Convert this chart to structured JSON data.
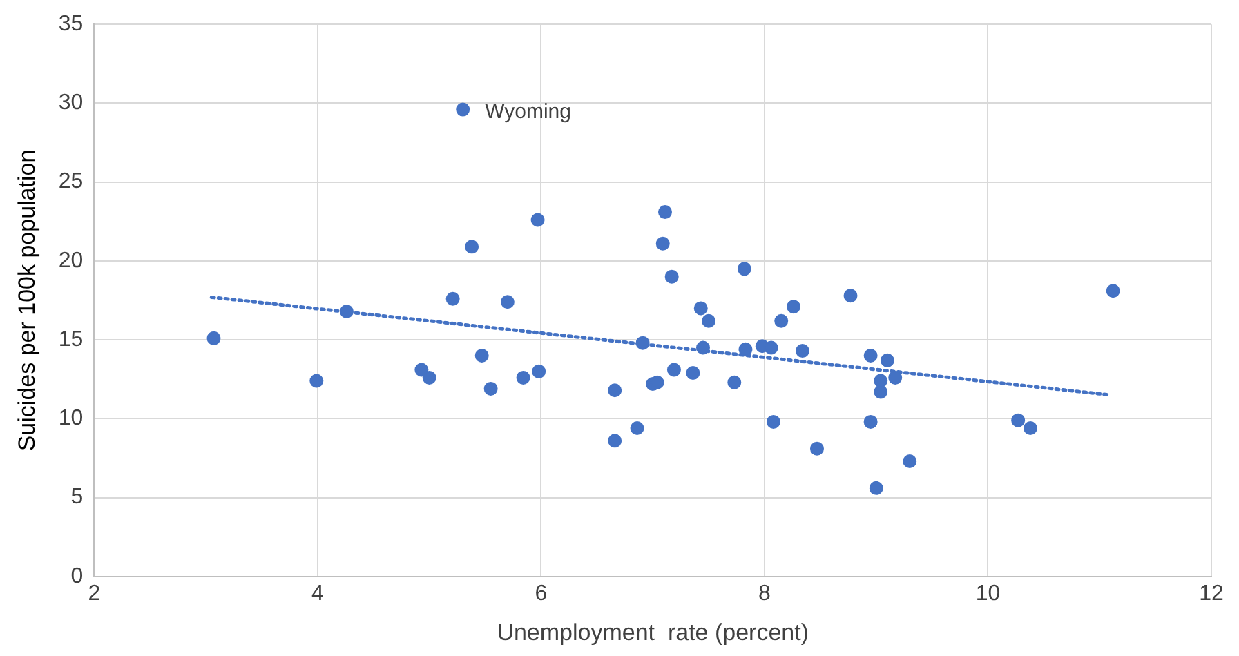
{
  "chart_data": {
    "type": "scatter",
    "xlabel": "Unemployment  rate (percent)",
    "ylabel": "Suicides per 100k population",
    "xlim": [
      2,
      12
    ],
    "xticks": [
      2,
      4,
      6,
      8,
      10,
      12
    ],
    "ylim": [
      0,
      35
    ],
    "yticks": [
      0,
      5,
      10,
      15,
      20,
      25,
      30,
      35
    ],
    "grid": true,
    "legend": false,
    "marker": "circle",
    "series": [
      {
        "color": "#4472c4",
        "x": [
          3.07,
          3.99,
          4.26,
          4.93,
          5.0,
          5.21,
          5.3,
          5.38,
          5.47,
          5.55,
          5.7,
          5.84,
          5.98,
          5.97,
          6.66,
          6.66,
          6.86,
          6.91,
          7.0,
          7.04,
          7.09,
          7.11,
          7.17,
          7.19,
          7.36,
          7.43,
          7.45,
          7.5,
          7.73,
          7.82,
          7.83,
          7.98,
          8.06,
          8.08,
          8.15,
          8.26,
          8.34,
          8.47,
          8.77,
          8.95,
          8.95,
          9.0,
          9.04,
          9.04,
          9.1,
          9.17,
          9.3,
          10.27,
          10.38,
          11.12
        ],
        "values": [
          15.1,
          12.4,
          16.8,
          13.1,
          12.6,
          17.6,
          29.6,
          20.9,
          14.0,
          11.9,
          17.4,
          12.6,
          13.0,
          22.6,
          11.8,
          8.6,
          9.4,
          14.8,
          12.2,
          12.3,
          21.1,
          23.1,
          19.0,
          13.1,
          12.9,
          17.0,
          14.5,
          16.2,
          12.3,
          19.5,
          14.4,
          14.6,
          14.5,
          9.8,
          16.2,
          17.1,
          14.3,
          8.1,
          17.8,
          14.0,
          9.8,
          5.6,
          12.4,
          11.7,
          13.7,
          12.6,
          7.3,
          9.9,
          9.4,
          18.1
        ]
      },
      {
        "type": "line",
        "color": "#4472c4",
        "x": [
          3.05,
          11.1
        ],
        "values": [
          17.7,
          11.5
        ],
        "marker": "none",
        "line_style": "dotted"
      }
    ],
    "annotations": [
      {
        "text": "Wyoming",
        "x": 5.3,
        "y": 29.6
      }
    ]
  }
}
